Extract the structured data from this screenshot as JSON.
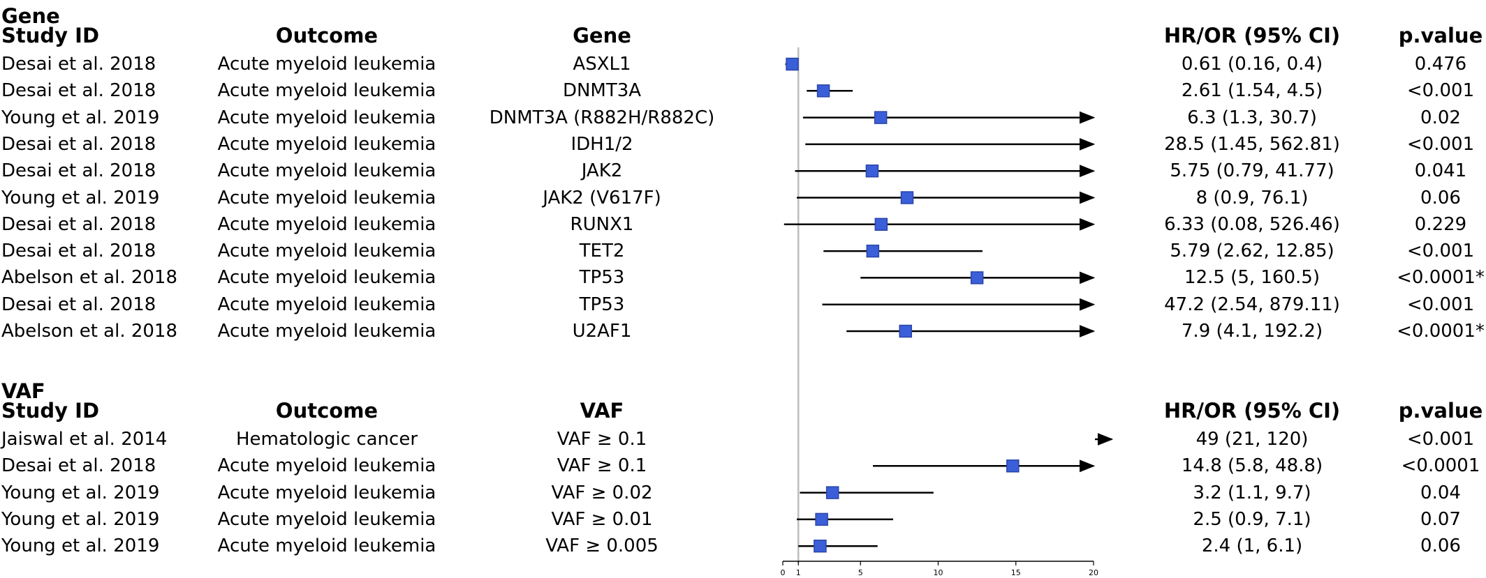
{
  "chart_data": {
    "type": "forest",
    "x_axis": {
      "min": 0,
      "max": 20,
      "ticks": [
        0,
        1,
        5,
        10,
        15,
        20
      ],
      "reference_line": 1
    },
    "sections": [
      {
        "title": "Gene",
        "columns": [
          "Study ID",
          "Outcome",
          "Gene",
          "HR/OR (95% CI)",
          "p.value"
        ],
        "rows": [
          {
            "study": "Desai et al. 2018",
            "outcome": "Acute myeloid leukemia",
            "label": "ASXL1",
            "est": 0.61,
            "lo": 0.16,
            "hi": 0.4,
            "ci_text": "0.61 (0.16, 0.4)",
            "p": "0.476"
          },
          {
            "study": "Desai et al. 2018",
            "outcome": "Acute myeloid leukemia",
            "label": "DNMT3A",
            "est": 2.61,
            "lo": 1.54,
            "hi": 4.5,
            "ci_text": "2.61 (1.54, 4.5)",
            "p": "<0.001"
          },
          {
            "study": "Young et al. 2019",
            "outcome": "Acute myeloid leukemia",
            "label": "DNMT3A (R882H/R882C)",
            "est": 6.3,
            "lo": 1.3,
            "hi": 30.7,
            "ci_text": "6.3 (1.3, 30.7)",
            "p": "0.02"
          },
          {
            "study": "Desai et al. 2018",
            "outcome": "Acute myeloid leukemia",
            "label": "IDH1/2",
            "est": 28.5,
            "lo": 1.45,
            "hi": 562.81,
            "ci_text": "28.5 (1.45, 562.81)",
            "p": "<0.001"
          },
          {
            "study": "Desai et al. 2018",
            "outcome": "Acute myeloid leukemia",
            "label": "JAK2",
            "est": 5.75,
            "lo": 0.79,
            "hi": 41.77,
            "ci_text": "5.75 (0.79, 41.77)",
            "p": "0.041"
          },
          {
            "study": "Young et al. 2019",
            "outcome": "Acute myeloid leukemia",
            "label": "JAK2 (V617F)",
            "est": 8,
            "lo": 0.9,
            "hi": 76.1,
            "ci_text": "8 (0.9, 76.1)",
            "p": "0.06"
          },
          {
            "study": "Desai et al. 2018",
            "outcome": "Acute myeloid leukemia",
            "label": "RUNX1",
            "est": 6.33,
            "lo": 0.08,
            "hi": 526.46,
            "ci_text": "6.33 (0.08, 526.46)",
            "p": "0.229"
          },
          {
            "study": "Desai et al. 2018",
            "outcome": "Acute myeloid leukemia",
            "label": "TET2",
            "est": 5.79,
            "lo": 2.62,
            "hi": 12.85,
            "ci_text": "5.79 (2.62, 12.85)",
            "p": "<0.001"
          },
          {
            "study": "Abelson et al. 2018",
            "outcome": "Acute myeloid leukemia",
            "label": "TP53",
            "est": 12.5,
            "lo": 5,
            "hi": 160.5,
            "ci_text": "12.5 (5, 160.5)",
            "p": "<0.0001*"
          },
          {
            "study": "Desai et al. 2018",
            "outcome": "Acute myeloid leukemia",
            "label": "TP53",
            "est": 47.2,
            "lo": 2.54,
            "hi": 879.11,
            "ci_text": "47.2 (2.54, 879.11)",
            "p": "<0.001"
          },
          {
            "study": "Abelson et al. 2018",
            "outcome": "Acute myeloid leukemia",
            "label": "U2AF1",
            "est": 7.9,
            "lo": 4.1,
            "hi": 192.2,
            "ci_text": "7.9 (4.1, 192.2)",
            "p": "<0.0001*"
          }
        ]
      },
      {
        "title": "VAF",
        "columns": [
          "Study ID",
          "Outcome",
          "VAF",
          "HR/OR (95% CI)",
          "p.value"
        ],
        "rows": [
          {
            "study": "Jaiswal et al. 2014",
            "outcome": "Hematologic cancer",
            "label": "VAF ≥ 0.1",
            "est": 49,
            "lo": 21,
            "hi": 120,
            "ci_text": "49 (21, 120)",
            "p": "<0.001"
          },
          {
            "study": "Desai et al. 2018",
            "outcome": "Acute myeloid leukemia",
            "label": "VAF ≥ 0.1",
            "est": 14.8,
            "lo": 5.8,
            "hi": 48.8,
            "ci_text": "14.8 (5.8, 48.8)",
            "p": "<0.0001"
          },
          {
            "study": "Young et al. 2019",
            "outcome": "Acute myeloid leukemia",
            "label": "VAF ≥ 0.02",
            "est": 3.2,
            "lo": 1.1,
            "hi": 9.7,
            "ci_text": "3.2 (1.1, 9.7)",
            "p": "0.04"
          },
          {
            "study": "Young et al. 2019",
            "outcome": "Acute myeloid leukemia",
            "label": "VAF ≥ 0.01",
            "est": 2.5,
            "lo": 0.9,
            "hi": 7.1,
            "ci_text": "2.5 (0.9, 7.1)",
            "p": "0.07"
          },
          {
            "study": "Young et al. 2019",
            "outcome": "Acute myeloid leukemia",
            "label": "VAF ≥ 0.005",
            "est": 2.4,
            "lo": 1,
            "hi": 6.1,
            "ci_text": "2.4 (1, 6.1)",
            "p": "0.06"
          }
        ]
      }
    ]
  },
  "colors": {
    "marker": "#3b5fd9",
    "marker_stroke": "#2a45a8",
    "ref_line": "#bdbdbd",
    "line": "#000000"
  }
}
